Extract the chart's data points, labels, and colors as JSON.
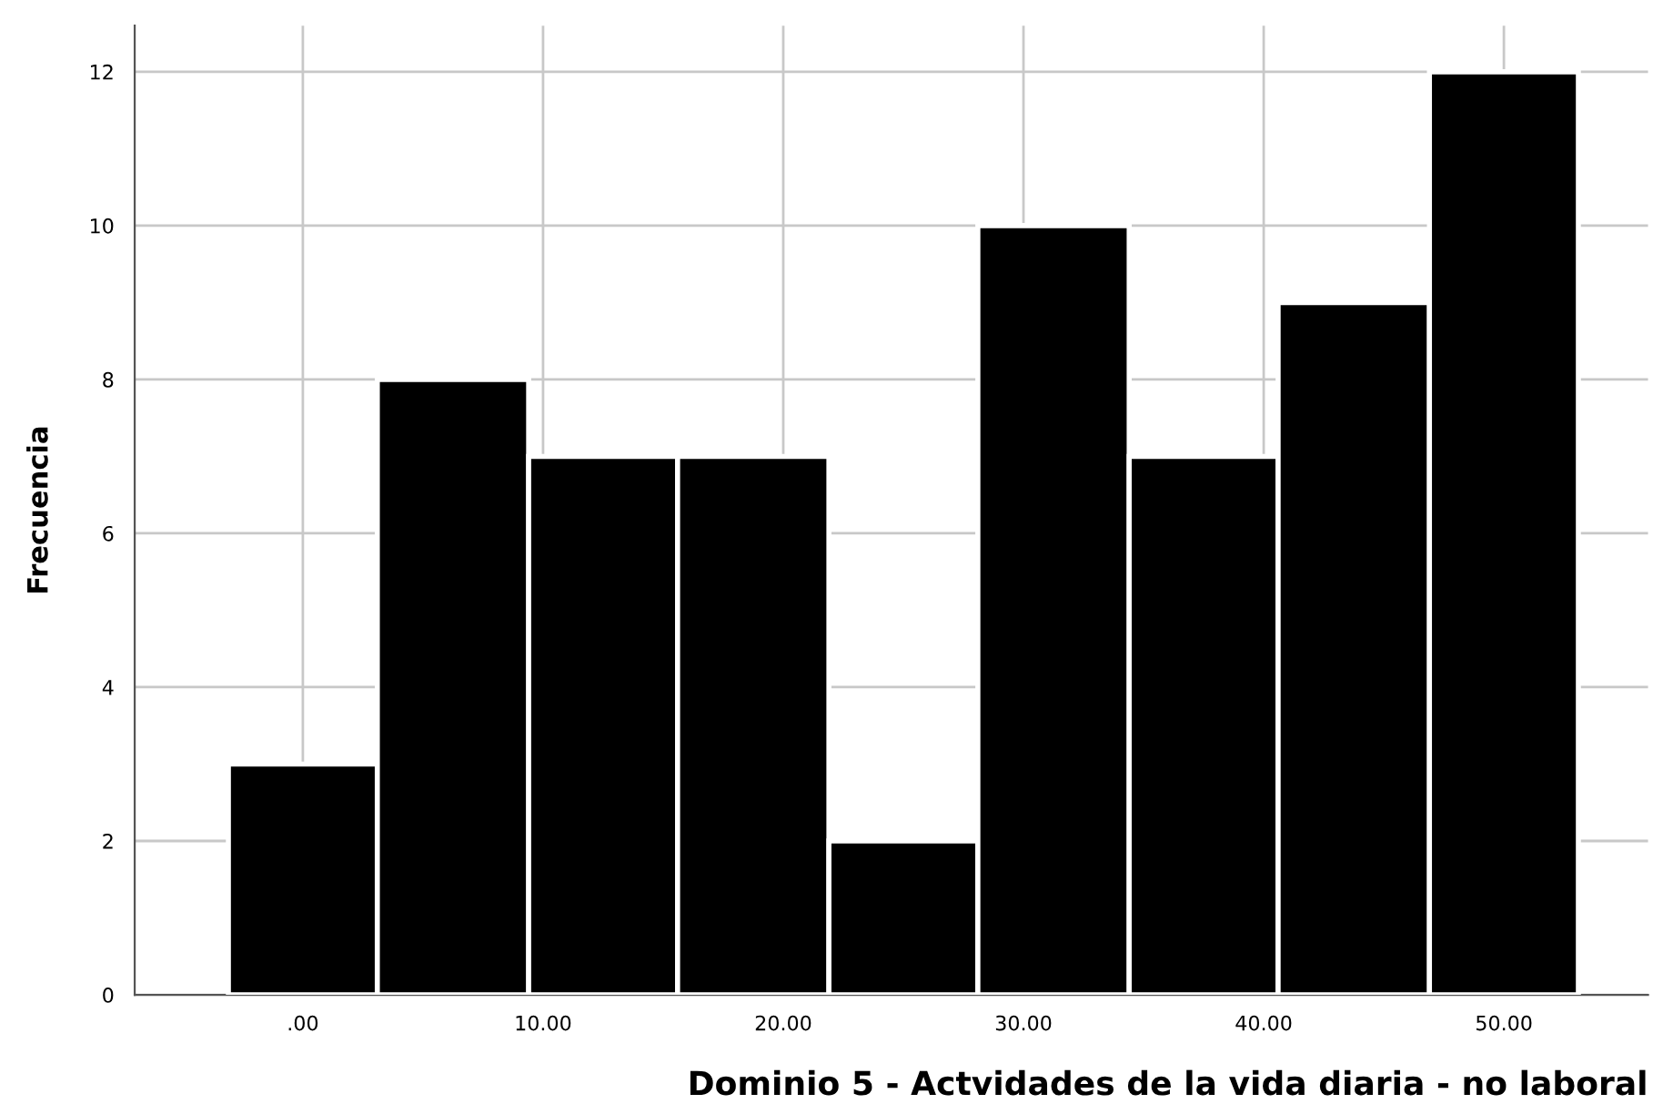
{
  "chart_data": {
    "type": "histogram",
    "xlabel": "Dominio 5 - Actvidades de la vida diaria - no laboral",
    "ylabel": "Frecuencia",
    "bins": [
      -3.1,
      3.1,
      9.4,
      15.6,
      21.9,
      28.1,
      34.4,
      40.6,
      46.9,
      53.1
    ],
    "values": [
      3,
      8,
      7,
      7,
      2,
      10,
      7,
      9,
      12
    ],
    "color": "#000000",
    "xlim": [
      -7,
      56
    ],
    "ylim": [
      0,
      12.6
    ],
    "xticks": [
      {
        "value": 0,
        "label": ".00"
      },
      {
        "value": 10,
        "label": "10.00"
      },
      {
        "value": 20,
        "label": "20.00"
      },
      {
        "value": 30,
        "label": "30.00"
      },
      {
        "value": 40,
        "label": "40.00"
      },
      {
        "value": 50,
        "label": "50.00"
      }
    ],
    "yticks": [
      0,
      2,
      4,
      6,
      8,
      10,
      12
    ],
    "grid": true
  }
}
